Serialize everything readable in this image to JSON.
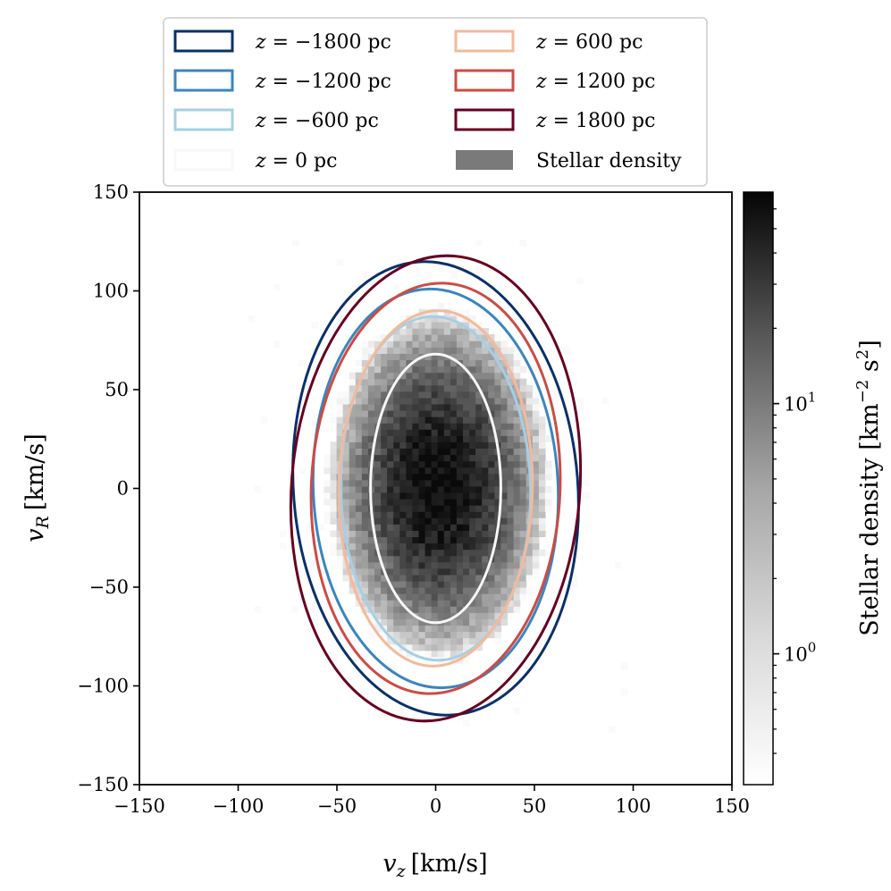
{
  "chart_data": {
    "type": "scatter",
    "title": "",
    "xlabel_var": "v",
    "xlabel_sub": "z",
    "xlabel_unit": "[km/s]",
    "ylabel_var": "v",
    "ylabel_sub": "R",
    "ylabel_unit": "[km/s]",
    "xlim": [
      -150,
      150
    ],
    "ylim": [
      -150,
      150
    ],
    "xticks": [
      -150,
      -100,
      -50,
      0,
      50,
      100,
      150
    ],
    "yticks": [
      -150,
      -100,
      -50,
      0,
      50,
      100,
      150
    ],
    "xtick_labels": [
      "−150",
      "−100",
      "−50",
      "0",
      "50",
      "100",
      "150"
    ],
    "ytick_labels": [
      "−150",
      "−100",
      "−50",
      "0",
      "50",
      "100",
      "150"
    ],
    "grid": false,
    "legend_position": "top",
    "density": {
      "name": "Stellar density",
      "center": [
        0,
        0
      ],
      "sigma_z": 21,
      "sigma_R": 33,
      "scale": "log",
      "range": [
        0.3,
        70
      ]
    },
    "colorbar": {
      "label_main": "Stellar density [km",
      "label_exp1": "−2",
      "label_mid": " s",
      "label_exp2": "2",
      "label_end": "]",
      "major_ticks": [
        {
          "value": 1,
          "base": "10",
          "exp": "0"
        },
        {
          "value": 10,
          "base": "10",
          "exp": "1"
        }
      ],
      "minor_ticks": [
        0.4,
        0.5,
        0.6,
        0.7,
        0.8,
        0.9,
        2,
        3,
        4,
        5,
        6,
        7,
        8,
        9,
        20,
        30,
        40,
        50,
        60
      ]
    },
    "series": [
      {
        "name": "z = −1800 pc",
        "z_var": "z",
        "value": "−1800",
        "unit": "pc",
        "color": "#08306b",
        "sigma_major": 115,
        "sigma_minor": 72,
        "tilt_deg": -4.5
      },
      {
        "name": "z = −1200 pc",
        "z_var": "z",
        "value": "−1200",
        "unit": "pc",
        "color": "#3a85c0",
        "sigma_major": 101,
        "sigma_minor": 62,
        "tilt_deg": -2.5
      },
      {
        "name": "z = −600 pc",
        "z_var": "z",
        "value": "−600",
        "unit": "pc",
        "color": "#a6cfe4",
        "sigma_major": 87,
        "sigma_minor": 48,
        "tilt_deg": -1.2
      },
      {
        "name": "z = 0 pc",
        "z_var": "z",
        "value": "0",
        "unit": "pc",
        "color": "#f7f7f7",
        "sigma_major": 68,
        "sigma_minor": 33,
        "tilt_deg": 0
      },
      {
        "name": "z = 600 pc",
        "z_var": "z",
        "value": "600",
        "unit": "pc",
        "color": "#f4b99b",
        "sigma_major": 90,
        "sigma_minor": 49,
        "tilt_deg": 1.2
      },
      {
        "name": "z = 1200 pc",
        "z_var": "z",
        "value": "1200",
        "unit": "pc",
        "color": "#cc4c44",
        "sigma_major": 104,
        "sigma_minor": 63,
        "tilt_deg": 2.5
      },
      {
        "name": "z = 1800 pc",
        "z_var": "z",
        "value": "1800",
        "unit": "pc",
        "color": "#67001f",
        "sigma_major": 118,
        "sigma_minor": 73,
        "tilt_deg": 4.5
      }
    ],
    "legend_order": [
      0,
      4,
      1,
      5,
      2,
      6,
      3,
      "density"
    ]
  }
}
